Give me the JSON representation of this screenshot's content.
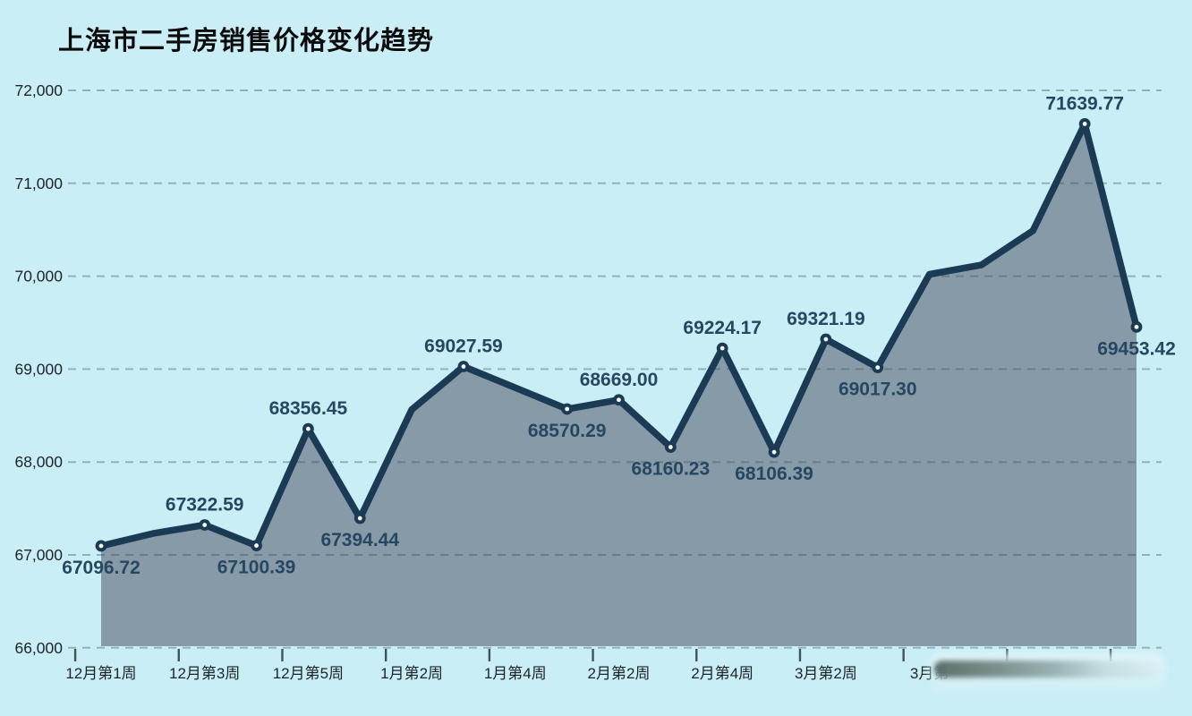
{
  "title": "上海市二手房销售价格变化趋势",
  "colors": {
    "background": "#c9eef5",
    "line": "#1b3a54",
    "area_fill": "#8497a5",
    "gridline": "#37505c",
    "marker_center": "#fdfefe",
    "data_label": "#274761",
    "axis_label": "#1c2429",
    "title_color": "#0b0b0b"
  },
  "y_axis": {
    "tick_labels": [
      "72,000",
      "71,000",
      "70,000",
      "69,000",
      "68,000",
      "67,000",
      "66,000"
    ],
    "min": 66000,
    "max": 72000,
    "step": 1000
  },
  "x_axis": {
    "tick_labels": [
      "12月第1周",
      "12月第3周",
      "12月第5周",
      "1月第2周",
      "1月第4周",
      "2月第2周",
      "2月第4周",
      "3月第2周",
      "3月第",
      "",
      ""
    ]
  },
  "chart_data": {
    "type": "area",
    "title": "上海市二手房销售价格变化趋势",
    "categories": [
      "12月第1周",
      "",
      "12月第3周",
      "",
      "12月第5周",
      "",
      "1月第2周",
      "",
      "1月第4周",
      "",
      "2月第2周",
      "",
      "2月第4周",
      "",
      "3月第2周",
      "",
      "3月第",
      "",
      "",
      "",
      ""
    ],
    "values": [
      67096.72,
      67230,
      67322.59,
      67100.39,
      68356.45,
      67394.44,
      68565,
      69027.59,
      68800,
      68570.29,
      68669.0,
      68160.23,
      69224.17,
      68106.39,
      69321.19,
      69017.3,
      70020,
      70120,
      70490,
      71639.77,
      69453.42
    ],
    "point_labels": [
      "67096.72",
      null,
      "67322.59",
      "67100.39",
      "68356.45",
      "67394.44",
      null,
      "69027.59",
      null,
      "68570.29",
      "68669.00",
      "68160.23",
      "69224.17",
      "68106.39",
      "69321.19",
      "69017.30",
      null,
      null,
      null,
      "71639.77",
      "69453.42"
    ],
    "label_position": [
      "below",
      null,
      "above",
      "below",
      "above",
      "below",
      null,
      "above",
      null,
      "below",
      "above",
      "below",
      "above",
      "below",
      "above",
      "below",
      null,
      null,
      null,
      "above",
      "below"
    ],
    "xlabel": "",
    "ylabel": "",
    "ylim": [
      66000,
      72000
    ],
    "grid": true,
    "legend": "none"
  }
}
